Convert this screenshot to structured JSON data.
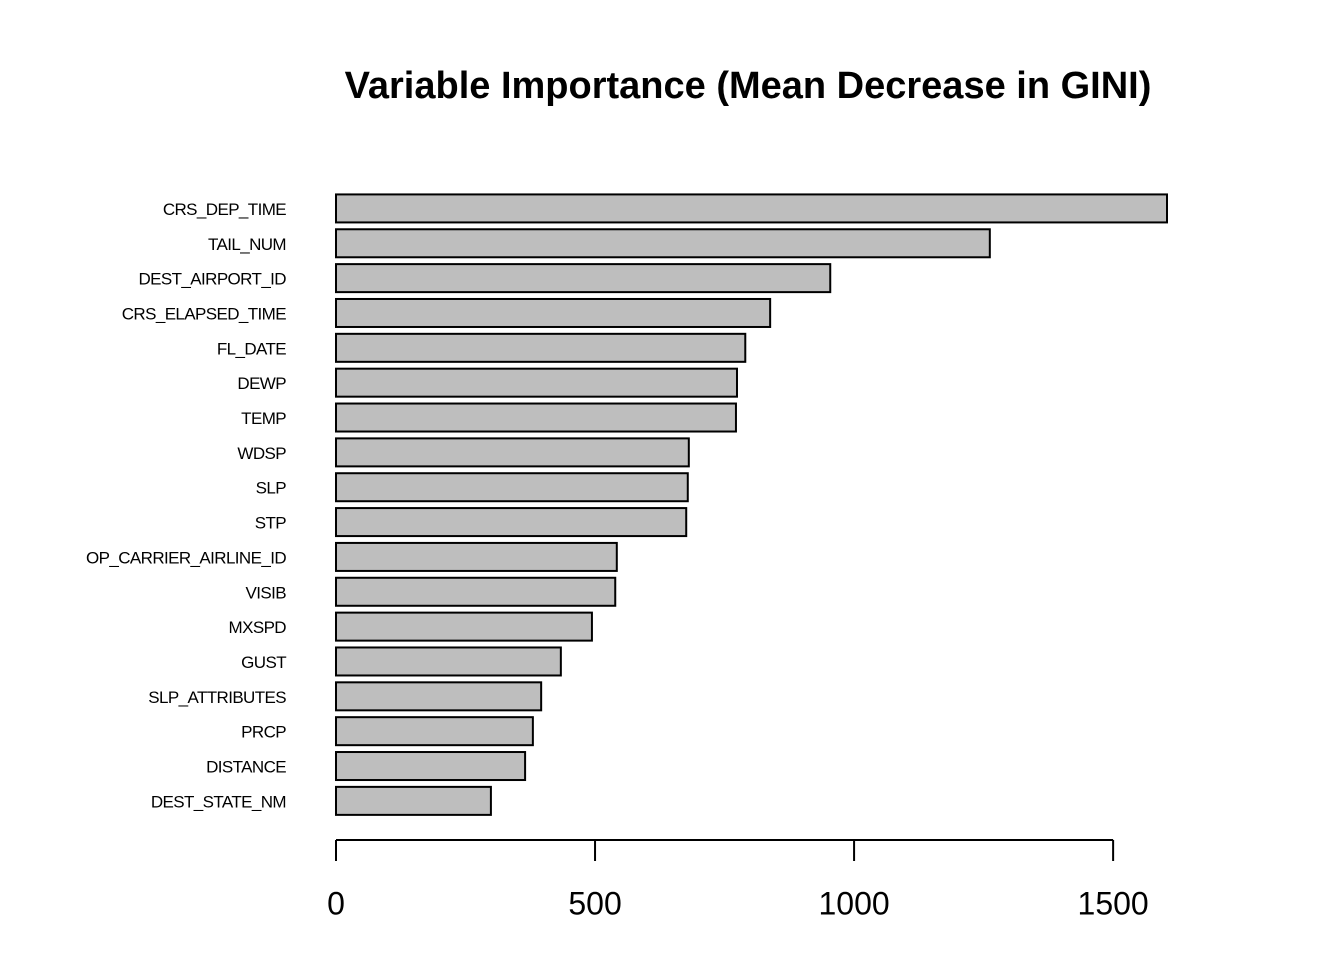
{
  "chart_data": {
    "type": "barh",
    "title": "Variable Importance (Mean Decrease in GINI)",
    "categories": [
      "CRS_DEP_TIME",
      "TAIL_NUM",
      "DEST_AIRPORT_ID",
      "CRS_ELAPSED_TIME",
      "FL_DATE",
      "DEWP",
      "TEMP",
      "WDSP",
      "SLP",
      "STP",
      "OP_CARRIER_AIRLINE_ID",
      "VISIB",
      "MXSPD",
      "GUST",
      "SLP_ATTRIBUTES",
      "PRCP",
      "DISTANCE",
      "DEST_STATE_NM"
    ],
    "values": [
      1604,
      1262,
      954,
      838,
      790,
      774,
      772,
      681,
      679,
      676,
      542,
      539,
      494,
      434,
      396,
      380,
      365,
      299
    ],
    "color": "#bebebe",
    "xlim": [
      0,
      1604
    ],
    "xticks": [
      0,
      500,
      1000,
      1500
    ]
  }
}
